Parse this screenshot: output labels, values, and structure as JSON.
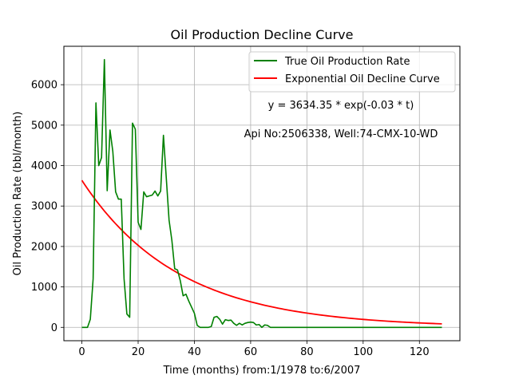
{
  "chart_data": {
    "type": "line",
    "title": "Oil Production Decline Curve",
    "xlabel": "Time (months) from:1/1978 to:6/2007",
    "ylabel": "Oil Production Rate (bbl/month)",
    "xlim": [
      -6.4,
      134.4
    ],
    "ylim": [
      -330,
      6950
    ],
    "xticks": [
      0,
      20,
      40,
      60,
      80,
      100,
      120
    ],
    "yticks": [
      0,
      1000,
      2000,
      3000,
      4000,
      5000,
      6000
    ],
    "grid": true,
    "legend_position": "top-right",
    "annotations": [
      "y = 3634.35 * exp(-0.03 * t)",
      "Api No:2506338, Well:74-CMX-10-WD"
    ],
    "series": [
      {
        "name": "True Oil Production Rate",
        "color": "#008000",
        "x": [
          0,
          1,
          2,
          3,
          4,
          5,
          6,
          7,
          8,
          9,
          10,
          11,
          12,
          13,
          14,
          15,
          16,
          17,
          18,
          19,
          20,
          21,
          22,
          23,
          24,
          25,
          26,
          27,
          28,
          29,
          30,
          31,
          32,
          33,
          34,
          35,
          36,
          37,
          38,
          39,
          40,
          41,
          42,
          43,
          44,
          45,
          46,
          47,
          48,
          49,
          50,
          51,
          52,
          53,
          54,
          55,
          56,
          57,
          58,
          59,
          60,
          61,
          62,
          63,
          64,
          65,
          66,
          67,
          68,
          69,
          70,
          71,
          72,
          74,
          76,
          78,
          80,
          82,
          84,
          86,
          88,
          90,
          92,
          94,
          96,
          98,
          100,
          102,
          104,
          106,
          108,
          110,
          112,
          114,
          116,
          118,
          120,
          122,
          124,
          126,
          128
        ],
        "y": [
          0,
          0,
          0,
          200,
          1200,
          5550,
          4000,
          4200,
          6620,
          3380,
          4880,
          4350,
          3350,
          3170,
          3170,
          1200,
          330,
          250,
          5050,
          4900,
          2600,
          2420,
          3350,
          3230,
          3250,
          3270,
          3370,
          3250,
          3370,
          4750,
          3700,
          2650,
          2150,
          1450,
          1420,
          1150,
          780,
          820,
          650,
          500,
          350,
          50,
          0,
          0,
          0,
          0,
          20,
          250,
          270,
          200,
          80,
          190,
          170,
          180,
          100,
          50,
          100,
          60,
          100,
          120,
          130,
          120,
          60,
          70,
          0,
          60,
          50,
          0,
          0,
          0,
          0,
          0,
          0,
          0,
          0,
          0,
          0,
          0,
          0,
          0,
          0,
          0,
          0,
          0,
          0,
          0,
          0,
          0,
          0,
          0,
          0,
          0,
          0,
          0,
          0,
          0,
          0,
          0,
          0,
          0,
          0
        ]
      },
      {
        "name": "Exponential Oil Decline Curve",
        "color": "#ff0000",
        "function": "3634.35 * exp(-0.0292 * t)",
        "x_range": [
          0,
          128
        ],
        "start_value": 3634.35,
        "end_value": 87
      }
    ]
  }
}
